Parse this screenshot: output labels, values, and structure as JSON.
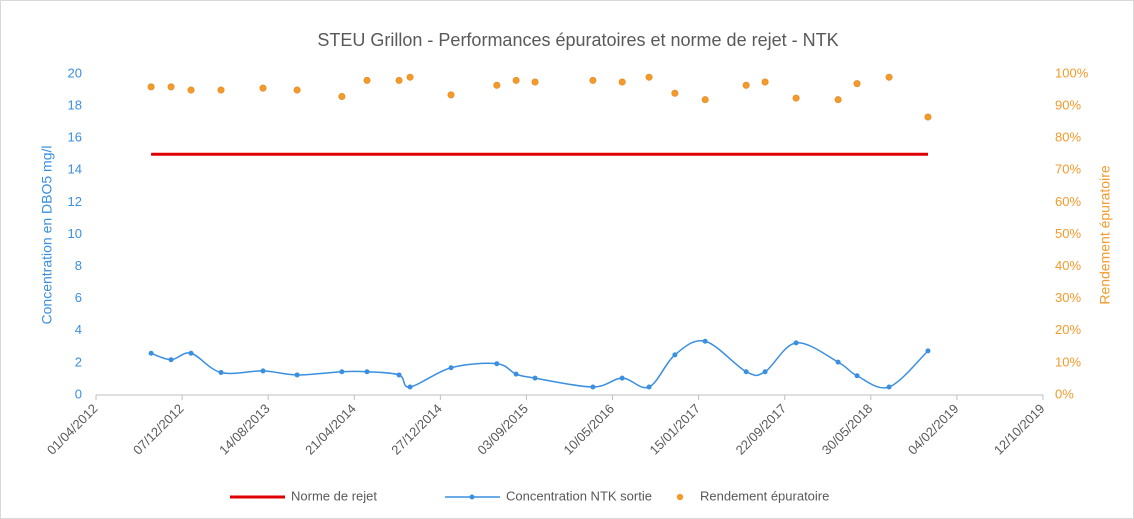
{
  "chart_data": {
    "type": "line",
    "title": "STEU Grillon - Performances épuratoires et norme de rejet - NTK",
    "ylabel": "Concentration en DBO5 mg/l",
    "y2label": "Rendement épuratoire",
    "x": [
      "08/09/2012",
      "05/11/2012",
      "02/01/2013",
      "30/03/2013",
      "30/07/2013",
      "06/11/2013",
      "16/03/2014",
      "28/05/2014",
      "29/08/2014",
      "30/09/2014",
      "27/01/2015",
      "09/06/2015",
      "04/08/2015",
      "28/09/2015",
      "14/03/2016",
      "07/06/2016",
      "24/08/2016",
      "07/11/2016",
      "03/02/2017",
      "02/06/2017",
      "27/07/2017",
      "25/10/2017",
      "24/02/2018",
      "20/04/2018",
      "22/07/2018",
      "12/11/2018"
    ],
    "series": [
      {
        "name": "Norme de rejet",
        "color": "#e00000",
        "style": "line",
        "values": [
          15,
          15,
          15,
          15,
          15,
          15,
          15,
          15,
          15,
          15,
          15,
          15,
          15,
          15,
          15,
          15,
          15,
          15,
          15,
          15,
          15,
          15,
          15,
          15,
          15,
          15
        ]
      },
      {
        "name": "Concentration NTK sortie",
        "color": "#3a8fe0",
        "style": "smooth-line-markers",
        "values": [
          2.6,
          2.2,
          2.6,
          1.4,
          1.5,
          1.25,
          1.45,
          1.45,
          1.25,
          0.5,
          1.7,
          1.95,
          1.3,
          1.05,
          0.5,
          1.05,
          0.5,
          2.5,
          3.35,
          1.45,
          1.45,
          3.25,
          2.05,
          1.2,
          0.5,
          2.75
        ]
      },
      {
        "name": "Rendement épuratoire",
        "color": "#f39a2b",
        "style": "markers",
        "axis": "y2",
        "values": [
          96,
          96,
          95,
          95,
          95.6,
          95,
          93,
          98,
          98,
          99,
          93.5,
          96.5,
          98,
          97.5,
          98,
          97.5,
          99,
          94,
          92,
          96.5,
          97.5,
          92.5,
          92,
          97,
          99,
          86.6
        ]
      }
    ],
    "xlim": [
      "01/04/2012",
      "12/10/2019"
    ],
    "xticks": [
      "01/04/2012",
      "07/12/2012",
      "14/08/2013",
      "21/04/2014",
      "27/12/2014",
      "03/09/2015",
      "10/05/2016",
      "15/01/2017",
      "22/09/2017",
      "30/05/2018",
      "04/02/2019",
      "12/10/2019"
    ],
    "ylim": [
      0,
      20
    ],
    "yticks": [
      0,
      2,
      4,
      6,
      8,
      10,
      12,
      14,
      16,
      18,
      20
    ],
    "y2lim": [
      0,
      100
    ],
    "y2ticks": [
      {
        "value": 0,
        "label": "0%"
      },
      {
        "value": 10,
        "label": "10%"
      },
      {
        "value": 20,
        "label": "20%"
      },
      {
        "value": 30,
        "label": "30%"
      },
      {
        "value": 40,
        "label": "40%"
      },
      {
        "value": 50,
        "label": "50%"
      },
      {
        "value": 60,
        "label": "60%"
      },
      {
        "value": 70,
        "label": "70%"
      },
      {
        "value": 80,
        "label": "80%"
      },
      {
        "value": 90,
        "label": "90%"
      },
      {
        "value": 100,
        "label": "100%"
      }
    ],
    "legend": "bottom",
    "grid": false
  }
}
